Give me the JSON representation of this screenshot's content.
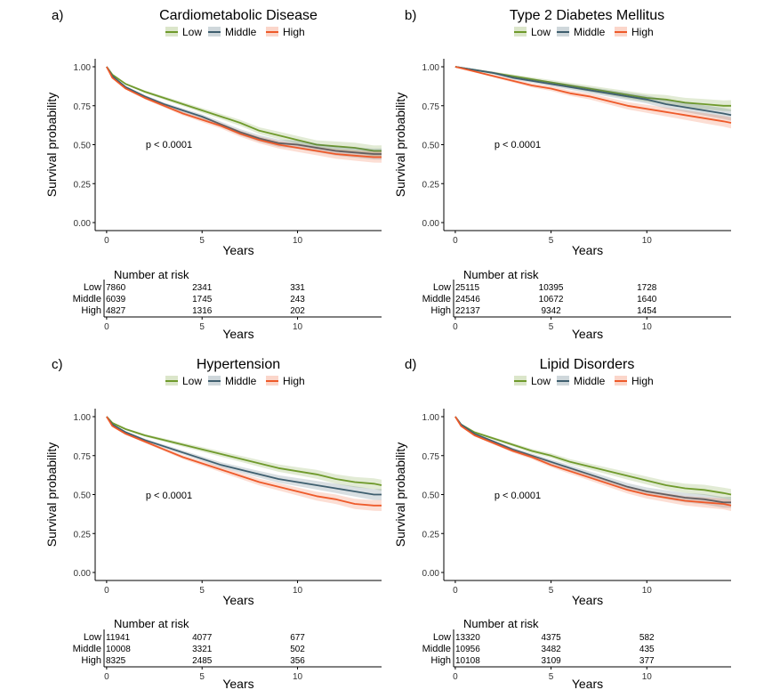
{
  "colors": {
    "low": "#6f9a2c",
    "middle": "#3f5f6f",
    "high": "#ee5a2a"
  },
  "chart_data": [
    {
      "type": "line",
      "panel_label": "a)",
      "title": "Cardiometabolic Disease",
      "xlabel": "Years",
      "ylabel": "Survival probability",
      "xlim": [
        -0.6,
        14.4
      ],
      "ylim": [
        0,
        1
      ],
      "xticks": [
        0,
        5,
        10
      ],
      "yticks": [
        "0.00",
        "0.25",
        "0.50",
        "0.75",
        "1.00"
      ],
      "pvalue": "p < 0.0001",
      "legend": [
        "Low",
        "Middle",
        "High"
      ],
      "x": [
        0,
        0.3,
        1,
        2,
        3,
        4,
        5,
        6,
        7,
        8,
        9,
        10,
        11,
        12,
        13,
        14,
        14.4
      ],
      "series": [
        {
          "name": "Low",
          "values": [
            1.0,
            0.95,
            0.89,
            0.84,
            0.8,
            0.76,
            0.72,
            0.68,
            0.64,
            0.59,
            0.56,
            0.53,
            0.5,
            0.49,
            0.48,
            0.46,
            0.46
          ]
        },
        {
          "name": "Middle",
          "values": [
            1.0,
            0.94,
            0.87,
            0.81,
            0.76,
            0.72,
            0.68,
            0.63,
            0.58,
            0.54,
            0.51,
            0.5,
            0.48,
            0.46,
            0.45,
            0.44,
            0.44
          ]
        },
        {
          "name": "High",
          "values": [
            1.0,
            0.93,
            0.86,
            0.8,
            0.75,
            0.7,
            0.66,
            0.62,
            0.57,
            0.53,
            0.5,
            0.48,
            0.46,
            0.44,
            0.43,
            0.42,
            0.42
          ]
        }
      ],
      "risk_table": {
        "title": "Number at risk",
        "xlabel": "Years",
        "times": [
          0,
          5,
          10
        ],
        "rows": [
          {
            "label": "Low",
            "values": [
              "7860",
              "2341",
              "331"
            ]
          },
          {
            "label": "Middle",
            "values": [
              "6039",
              "1745",
              "243"
            ]
          },
          {
            "label": "High",
            "values": [
              "4827",
              "1316",
              "202"
            ]
          }
        ]
      }
    },
    {
      "type": "line",
      "panel_label": "b)",
      "title": "Type 2 Diabetes Mellitus",
      "xlabel": "Years",
      "ylabel": "Survival probability",
      "xlim": [
        -0.6,
        14.4
      ],
      "ylim": [
        0,
        1
      ],
      "xticks": [
        0,
        5,
        10
      ],
      "yticks": [
        "0.00",
        "0.25",
        "0.50",
        "0.75",
        "1.00"
      ],
      "pvalue": "p < 0.0001",
      "legend": [
        "Low",
        "Middle",
        "High"
      ],
      "x": [
        0,
        1,
        2,
        3,
        4,
        5,
        6,
        7,
        8,
        9,
        10,
        11,
        12,
        13,
        14,
        14.4
      ],
      "series": [
        {
          "name": "Low",
          "values": [
            1.0,
            0.98,
            0.96,
            0.94,
            0.92,
            0.9,
            0.88,
            0.86,
            0.84,
            0.82,
            0.8,
            0.79,
            0.77,
            0.76,
            0.75,
            0.75
          ]
        },
        {
          "name": "Middle",
          "values": [
            1.0,
            0.98,
            0.96,
            0.93,
            0.91,
            0.89,
            0.87,
            0.85,
            0.83,
            0.81,
            0.79,
            0.76,
            0.74,
            0.72,
            0.7,
            0.69
          ]
        },
        {
          "name": "High",
          "values": [
            1.0,
            0.97,
            0.94,
            0.91,
            0.88,
            0.86,
            0.83,
            0.81,
            0.78,
            0.75,
            0.73,
            0.71,
            0.69,
            0.67,
            0.65,
            0.64
          ]
        }
      ],
      "risk_table": {
        "title": "Number at risk",
        "xlabel": "Years",
        "times": [
          0,
          5,
          10
        ],
        "rows": [
          {
            "label": "Low",
            "values": [
              "25115",
              "10395",
              "1728"
            ]
          },
          {
            "label": "Middle",
            "values": [
              "24546",
              "10672",
              "1640"
            ]
          },
          {
            "label": "High",
            "values": [
              "22137",
              "9342",
              "1454"
            ]
          }
        ]
      }
    },
    {
      "type": "line",
      "panel_label": "c)",
      "title": "Hypertension",
      "xlabel": "Years",
      "ylabel": "Survival probability",
      "xlim": [
        -0.6,
        14.4
      ],
      "ylim": [
        0,
        1
      ],
      "xticks": [
        0,
        5,
        10
      ],
      "yticks": [
        "0.00",
        "0.25",
        "0.50",
        "0.75",
        "1.00"
      ],
      "pvalue": "p < 0.0001",
      "legend": [
        "Low",
        "Middle",
        "High"
      ],
      "x": [
        0,
        0.3,
        1,
        2,
        3,
        4,
        5,
        6,
        7,
        8,
        9,
        10,
        11,
        12,
        13,
        14,
        14.4
      ],
      "series": [
        {
          "name": "Low",
          "values": [
            1.0,
            0.96,
            0.92,
            0.88,
            0.85,
            0.82,
            0.79,
            0.76,
            0.73,
            0.7,
            0.67,
            0.65,
            0.63,
            0.6,
            0.58,
            0.57,
            0.56
          ]
        },
        {
          "name": "Middle",
          "values": [
            1.0,
            0.95,
            0.9,
            0.85,
            0.81,
            0.77,
            0.73,
            0.69,
            0.66,
            0.63,
            0.6,
            0.58,
            0.56,
            0.54,
            0.52,
            0.5,
            0.5
          ]
        },
        {
          "name": "High",
          "values": [
            1.0,
            0.94,
            0.89,
            0.84,
            0.79,
            0.74,
            0.7,
            0.66,
            0.62,
            0.58,
            0.55,
            0.52,
            0.49,
            0.47,
            0.44,
            0.43,
            0.43
          ]
        }
      ],
      "risk_table": {
        "title": "Number at risk",
        "xlabel": "Years",
        "times": [
          0,
          5,
          10
        ],
        "rows": [
          {
            "label": "Low",
            "values": [
              "11941",
              "4077",
              "677"
            ]
          },
          {
            "label": "Middle",
            "values": [
              "10008",
              "3321",
              "502"
            ]
          },
          {
            "label": "High",
            "values": [
              "8325",
              "2485",
              "356"
            ]
          }
        ]
      }
    },
    {
      "type": "line",
      "panel_label": "d)",
      "title": "Lipid Disorders",
      "xlabel": "Years",
      "ylabel": "Survival probability",
      "xlim": [
        -0.6,
        14.4
      ],
      "ylim": [
        0,
        1
      ],
      "xticks": [
        0,
        5,
        10
      ],
      "yticks": [
        "0.00",
        "0.25",
        "0.50",
        "0.75",
        "1.00"
      ],
      "pvalue": "p < 0.0001",
      "legend": [
        "Low",
        "Middle",
        "High"
      ],
      "x": [
        0,
        0.3,
        1,
        2,
        3,
        4,
        5,
        6,
        7,
        8,
        9,
        10,
        11,
        12,
        13,
        14,
        14.4
      ],
      "series": [
        {
          "name": "Low",
          "values": [
            1.0,
            0.95,
            0.9,
            0.86,
            0.82,
            0.78,
            0.75,
            0.71,
            0.68,
            0.65,
            0.62,
            0.59,
            0.56,
            0.54,
            0.53,
            0.51,
            0.5
          ]
        },
        {
          "name": "Middle",
          "values": [
            1.0,
            0.95,
            0.89,
            0.84,
            0.79,
            0.75,
            0.71,
            0.67,
            0.63,
            0.59,
            0.55,
            0.52,
            0.5,
            0.48,
            0.47,
            0.45,
            0.45
          ]
        },
        {
          "name": "High",
          "values": [
            1.0,
            0.94,
            0.88,
            0.83,
            0.78,
            0.74,
            0.69,
            0.65,
            0.61,
            0.57,
            0.53,
            0.5,
            0.48,
            0.46,
            0.45,
            0.44,
            0.43
          ]
        }
      ],
      "risk_table": {
        "title": "Number at risk",
        "xlabel": "Years",
        "times": [
          0,
          5,
          10
        ],
        "rows": [
          {
            "label": "Low",
            "values": [
              "13320",
              "4375",
              "582"
            ]
          },
          {
            "label": "Middle",
            "values": [
              "10956",
              "3482",
              "435"
            ]
          },
          {
            "label": "High",
            "values": [
              "10108",
              "3109",
              "377"
            ]
          }
        ]
      }
    }
  ]
}
